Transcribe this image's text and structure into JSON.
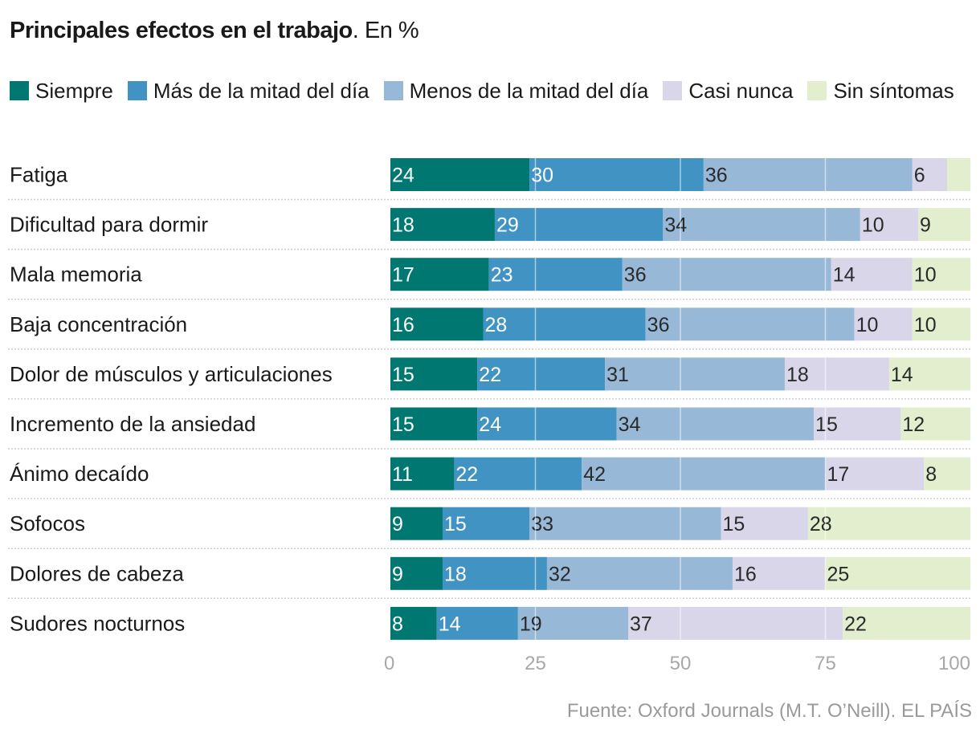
{
  "title": {
    "bold": "Principales efectos en el trabajo",
    "rest": ". En %"
  },
  "source": "Fuente: Oxford Journals (M.T. O’Neill). EL PAÍS",
  "colors": {
    "Siempre": "#007871",
    "Más de la mitad del día": "#4193c3",
    "Menos de la mitad del día": "#97b8d7",
    "Casi nunca": "#d9d6ea",
    "Sin síntomas": "#e2eecd"
  },
  "chart_data": {
    "type": "bar",
    "orientation": "horizontal",
    "stacked": true,
    "title": "Principales efectos en el trabajo. En %",
    "xlabel": "",
    "ylabel": "",
    "xlim": [
      0,
      100
    ],
    "xticks": [
      "0",
      "25",
      "50",
      "75",
      "100"
    ],
    "legend_position": "top",
    "categories": [
      "Fatiga",
      "Dificultad para dormir",
      "Mala memoria",
      "Baja concentración",
      "Dolor de músculos y articulaciones",
      "Incremento de la ansiedad",
      "Ánimo decaído",
      "Sofocos",
      "Dolores de cabeza",
      "Sudores nocturnos"
    ],
    "series": [
      {
        "name": "Siempre",
        "values": [
          24,
          18,
          17,
          16,
          15,
          15,
          11,
          9,
          9,
          8
        ]
      },
      {
        "name": "Más de la mitad del día",
        "values": [
          30,
          29,
          23,
          28,
          22,
          24,
          22,
          15,
          18,
          14
        ]
      },
      {
        "name": "Menos de la mitad del día",
        "values": [
          36,
          34,
          36,
          36,
          31,
          34,
          42,
          33,
          32,
          19
        ]
      },
      {
        "name": "Casi nunca",
        "values": [
          6,
          10,
          14,
          10,
          18,
          15,
          17,
          15,
          16,
          37
        ]
      },
      {
        "name": "Sin síntomas",
        "values": [
          4,
          9,
          10,
          10,
          14,
          12,
          8,
          28,
          25,
          22
        ]
      }
    ],
    "value_labels_shown": [
      [
        "24",
        "30",
        "36",
        "6",
        ""
      ],
      [
        "18",
        "29",
        "34",
        "10",
        "9"
      ],
      [
        "17",
        "23",
        "36",
        "14",
        "10"
      ],
      [
        "16",
        "28",
        "36",
        "10",
        "10"
      ],
      [
        "15",
        "22",
        "31",
        "18",
        "14"
      ],
      [
        "15",
        "24",
        "34",
        "15",
        "12"
      ],
      [
        "11",
        "22",
        "42",
        "17",
        "8"
      ],
      [
        "9",
        "15",
        "33",
        "15",
        "28"
      ],
      [
        "9",
        "18",
        "32",
        "16",
        "25"
      ],
      [
        "8",
        "14",
        "19",
        "37",
        "22"
      ]
    ],
    "grid": true
  }
}
